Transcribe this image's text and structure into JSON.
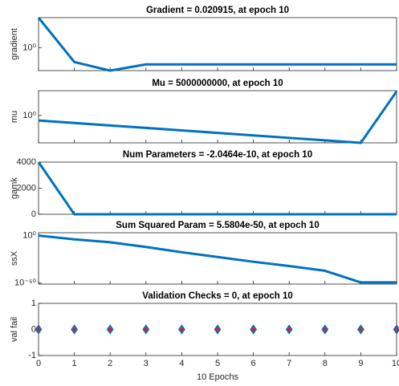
{
  "chart_data": [
    {
      "type": "line",
      "title": "Gradient = 0.020915, at epoch 10",
      "ylabel": "gradient",
      "log": true,
      "color": "#0072bd",
      "x": [
        0,
        1,
        2,
        3,
        4,
        5,
        6,
        7,
        8,
        9,
        10
      ],
      "values": [
        1000,
        0.036,
        0.005,
        0.020915,
        0.020915,
        0.020915,
        0.020915,
        0.020915,
        0.020915,
        0.020915,
        0.020915
      ],
      "xlim": [
        0,
        10
      ],
      "xticks": [
        0,
        1,
        2,
        3,
        4,
        5,
        6,
        7,
        8,
        9,
        10
      ],
      "ylim": [
        0.005,
        1000
      ],
      "yticks": [
        {
          "value": 1,
          "label": "10⁰"
        }
      ]
    },
    {
      "type": "line",
      "title": "Mu = 5000000000, at epoch 10",
      "ylabel": "mu",
      "log": true,
      "color": "#0072bd",
      "x": [
        0,
        1,
        2,
        3,
        4,
        5,
        6,
        7,
        8,
        9,
        10
      ],
      "values": [
        0.01,
        0.001,
        0.0001,
        1e-05,
        1e-06,
        1e-07,
        1e-08,
        1e-09,
        1e-10,
        1e-11,
        5000000000
      ],
      "xlim": [
        0,
        10
      ],
      "xticks": [
        0,
        1,
        2,
        3,
        4,
        5,
        6,
        7,
        8,
        9,
        10
      ],
      "ylim": [
        1e-11,
        10000000000.0
      ],
      "yticks": [
        {
          "value": 1,
          "label": "10⁰"
        }
      ]
    },
    {
      "type": "line",
      "title": "Num Parameters = -2.0464e-10, at epoch 10",
      "ylabel": "gamk",
      "log": false,
      "color": "#0072bd",
      "x": [
        0,
        1,
        2,
        3,
        4,
        5,
        6,
        7,
        8,
        9,
        10
      ],
      "values": [
        4000,
        0,
        0,
        0,
        0,
        0,
        0,
        0,
        0,
        0,
        -2.0464e-10
      ],
      "xlim": [
        0,
        10
      ],
      "xticks": [
        0,
        1,
        2,
        3,
        4,
        5,
        6,
        7,
        8,
        9,
        10
      ],
      "ylim": [
        0,
        4000
      ],
      "yticks": [
        0,
        2000,
        4000
      ]
    },
    {
      "type": "line",
      "title": "Sum Squared Param = 5.5804e-50, at epoch 10",
      "ylabel": "ssX",
      "log": true,
      "color": "#0072bd",
      "x": [
        0,
        1,
        2,
        3,
        4,
        5,
        6,
        7,
        8,
        9,
        10
      ],
      "values": [
        1,
        0.0001,
        1e-07,
        1e-12,
        3e-18,
        3e-23,
        3e-28,
        1e-32,
        1e-37,
        5.5804e-50,
        5.5804e-50
      ],
      "xlim": [
        0,
        10
      ],
      "xticks": [
        0,
        1,
        2,
        3,
        4,
        5,
        6,
        7,
        8,
        9,
        10
      ],
      "ylim": [
        1e-51,
        1000
      ],
      "yticks": [
        {
          "value": 1,
          "label": "10⁰"
        },
        {
          "value": 1e-50,
          "label": "10⁻⁵⁰"
        }
      ]
    },
    {
      "type": "scatter",
      "title": "Validation Checks = 0, at epoch 10",
      "ylabel": "val fail",
      "xlabel": "10 Epochs",
      "log": false,
      "color": "#d62728",
      "edge_color": "#0072bd",
      "x": [
        0,
        1,
        2,
        3,
        4,
        5,
        6,
        7,
        8,
        9,
        10
      ],
      "values": [
        0,
        0,
        0,
        0,
        0,
        0,
        0,
        0,
        0,
        0,
        0
      ],
      "xlim": [
        0,
        10
      ],
      "xticks": [
        0,
        1,
        2,
        3,
        4,
        5,
        6,
        7,
        8,
        9,
        10
      ],
      "ylim": [
        -1,
        1
      ],
      "yticks": [
        -1,
        0,
        1
      ]
    }
  ]
}
